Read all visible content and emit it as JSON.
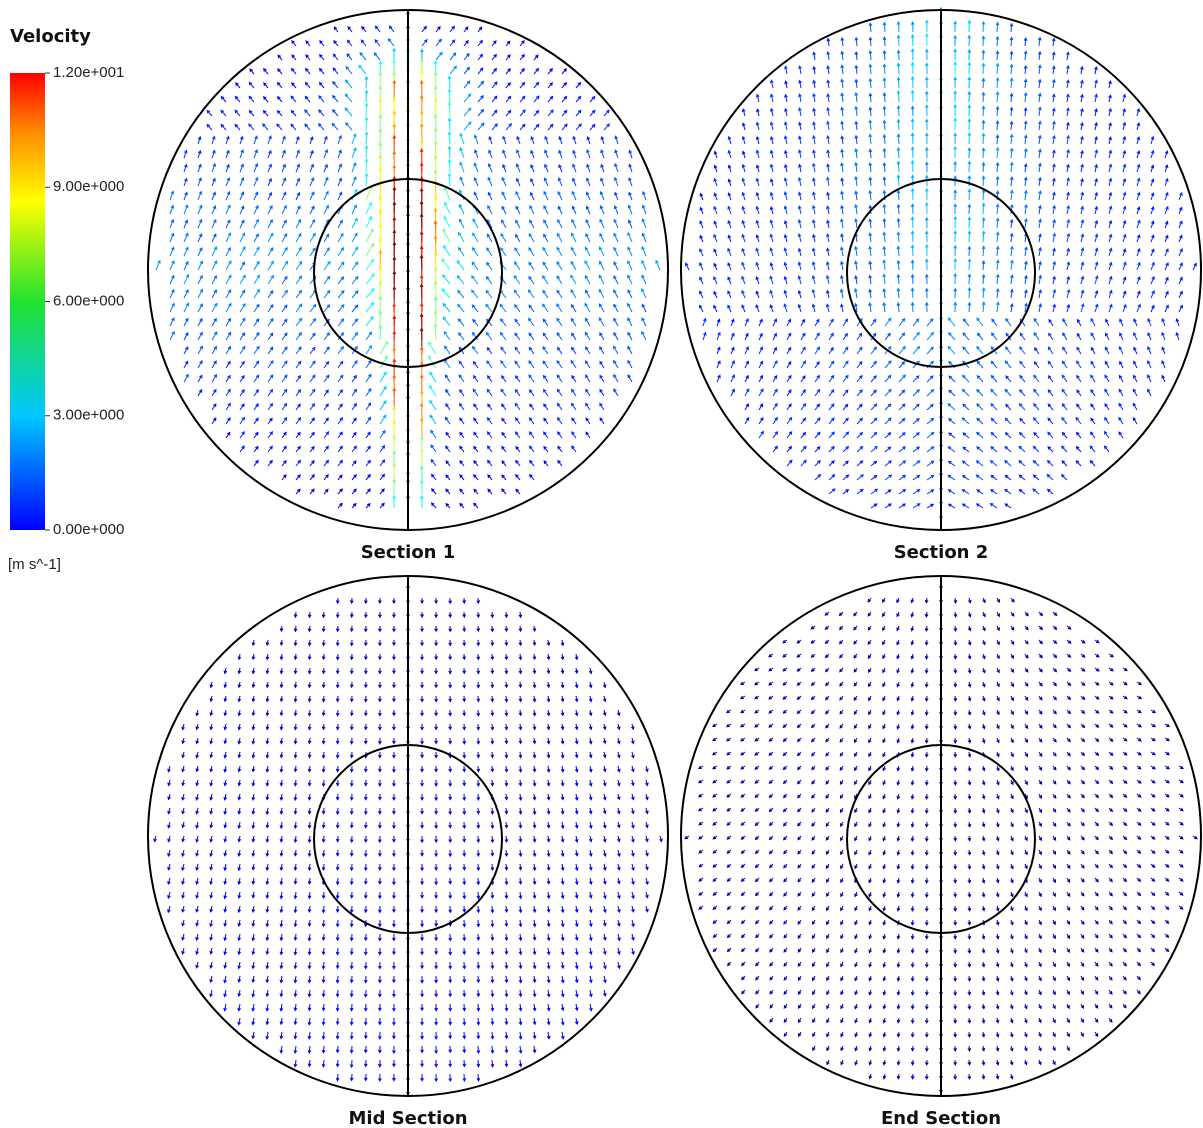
{
  "legend": {
    "title": "Velocity",
    "unit": "[m s^-1]",
    "ticks": [
      {
        "value": 12,
        "label": "1.20e+001"
      },
      {
        "value": 9,
        "label": "9.00e+000"
      },
      {
        "value": 6,
        "label": "6.00e+000"
      },
      {
        "value": 3,
        "label": "3.00e+000"
      },
      {
        "value": 0,
        "label": "0.00e+000"
      }
    ]
  },
  "panels": [
    {
      "title": "Section 1"
    },
    {
      "title": "Section 2"
    },
    {
      "title": "Mid Section"
    },
    {
      "title": "End Section"
    }
  ]
}
